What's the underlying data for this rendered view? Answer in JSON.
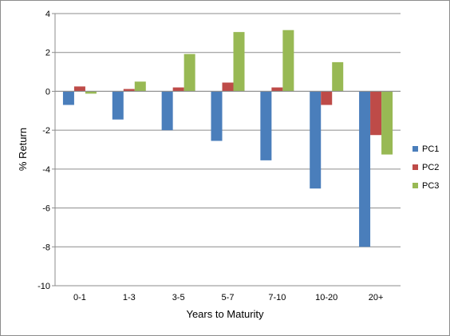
{
  "chart_data": {
    "type": "bar",
    "categories": [
      "0-1",
      "1-3",
      "3-5",
      "5-7",
      "7-10",
      "10-20",
      "20+"
    ],
    "series": [
      {
        "name": "PC1",
        "color": "#4a7ebb",
        "values": [
          -0.7,
          -1.45,
          -2.0,
          -2.55,
          -3.55,
          -5.0,
          -8.0
        ]
      },
      {
        "name": "PC2",
        "color": "#be4b48",
        "values": [
          0.25,
          0.12,
          0.2,
          0.45,
          0.2,
          -0.7,
          -2.25
        ]
      },
      {
        "name": "PC3",
        "color": "#98b954",
        "values": [
          -0.12,
          0.5,
          1.92,
          3.05,
          3.15,
          1.5,
          -3.25
        ]
      }
    ],
    "title": "",
    "xlabel": "Years to Maturity",
    "ylabel": "% Return",
    "ylim": [
      -10,
      4
    ],
    "yticks": [
      4,
      2,
      0,
      -2,
      -4,
      -6,
      -8,
      -10
    ],
    "grid": true,
    "legend_position": "right"
  }
}
